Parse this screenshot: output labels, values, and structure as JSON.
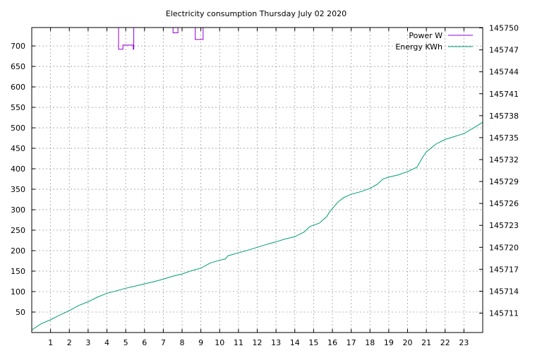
{
  "chart_data": {
    "type": "line",
    "title": "Electricity consumption Thursday July 02 2020",
    "x": {
      "range": [
        0,
        24
      ],
      "ticks": [
        1,
        2,
        3,
        4,
        5,
        6,
        7,
        8,
        9,
        10,
        11,
        12,
        13,
        14,
        15,
        16,
        17,
        18,
        19,
        20,
        21,
        22,
        23
      ]
    },
    "y_left": {
      "range": [
        0,
        745
      ],
      "ticks": [
        50,
        100,
        150,
        200,
        250,
        300,
        350,
        400,
        450,
        500,
        550,
        600,
        650,
        700
      ]
    },
    "y_right": {
      "range": [
        145708.35,
        145750.05
      ],
      "ticks": [
        145711,
        145714,
        145717,
        145720,
        145723,
        145726,
        145729,
        145732,
        145735,
        145738,
        145741,
        145744,
        145747,
        145750
      ]
    },
    "grid": true,
    "legend_position": "top-right",
    "series": [
      {
        "name": "Power W",
        "axis": "left",
        "color": "#9400d3",
        "step": true,
        "points": [
          [
            4.62,
            745
          ],
          [
            4.62,
            692
          ],
          [
            4.85,
            692
          ],
          [
            4.85,
            702
          ],
          [
            5.4,
            702
          ],
          [
            5.4,
            692
          ],
          [
            5.43,
            692
          ],
          [
            5.43,
            745
          ],
          [
            7.0,
            745
          ],
          [
            7.0,
            748
          ],
          [
            7.52,
            748
          ],
          [
            7.52,
            732
          ],
          [
            7.78,
            732
          ],
          [
            7.78,
            745
          ],
          [
            7.78,
            745
          ],
          [
            7.78,
            748
          ],
          [
            8.7,
            748
          ],
          [
            8.7,
            716
          ],
          [
            9.12,
            716
          ],
          [
            9.12,
            745
          ]
        ]
      },
      {
        "name": "Energy KWh",
        "axis": "right",
        "color": "#009e73",
        "step": false,
        "points": [
          [
            0,
            145708.7
          ],
          [
            0.5,
            145709.55
          ],
          [
            1.0,
            145710.1
          ],
          [
            1.5,
            145710.75
          ],
          [
            2.0,
            145711.35
          ],
          [
            2.5,
            145712.05
          ],
          [
            3.0,
            145712.55
          ],
          [
            3.5,
            145713.2
          ],
          [
            4.0,
            145713.7
          ],
          [
            4.5,
            145714.05
          ],
          [
            5.0,
            145714.4
          ],
          [
            5.5,
            145714.7
          ],
          [
            6.0,
            145715.0
          ],
          [
            6.5,
            145715.3
          ],
          [
            7.0,
            145715.65
          ],
          [
            7.5,
            145716.05
          ],
          [
            8.0,
            145716.35
          ],
          [
            8.5,
            145716.8
          ],
          [
            9.0,
            145717.15
          ],
          [
            9.5,
            145717.85
          ],
          [
            10.0,
            145718.25
          ],
          [
            10.3,
            145718.4
          ],
          [
            10.45,
            145718.85
          ],
          [
            11.0,
            145719.25
          ],
          [
            11.5,
            145719.6
          ],
          [
            12.0,
            145720.0
          ],
          [
            12.5,
            145720.4
          ],
          [
            13.0,
            145720.75
          ],
          [
            13.5,
            145721.15
          ],
          [
            14.0,
            145721.45
          ],
          [
            14.5,
            145722.1
          ],
          [
            14.8,
            145722.85
          ],
          [
            15.3,
            145723.3
          ],
          [
            15.7,
            145724.2
          ],
          [
            15.85,
            145724.85
          ],
          [
            16.3,
            145726.2
          ],
          [
            16.6,
            145726.8
          ],
          [
            17.0,
            145727.25
          ],
          [
            17.5,
            145727.6
          ],
          [
            18.0,
            145728.05
          ],
          [
            18.4,
            145728.65
          ],
          [
            18.7,
            145729.35
          ],
          [
            19.0,
            145729.6
          ],
          [
            19.5,
            145729.9
          ],
          [
            20.0,
            145730.35
          ],
          [
            20.5,
            145730.95
          ],
          [
            20.8,
            145732.3
          ],
          [
            21.0,
            145733.05
          ],
          [
            21.5,
            145734.1
          ],
          [
            22.0,
            145734.75
          ],
          [
            22.5,
            145735.15
          ],
          [
            23.0,
            145735.55
          ],
          [
            23.5,
            145736.3
          ],
          [
            24.0,
            145737.1
          ]
        ]
      }
    ]
  }
}
